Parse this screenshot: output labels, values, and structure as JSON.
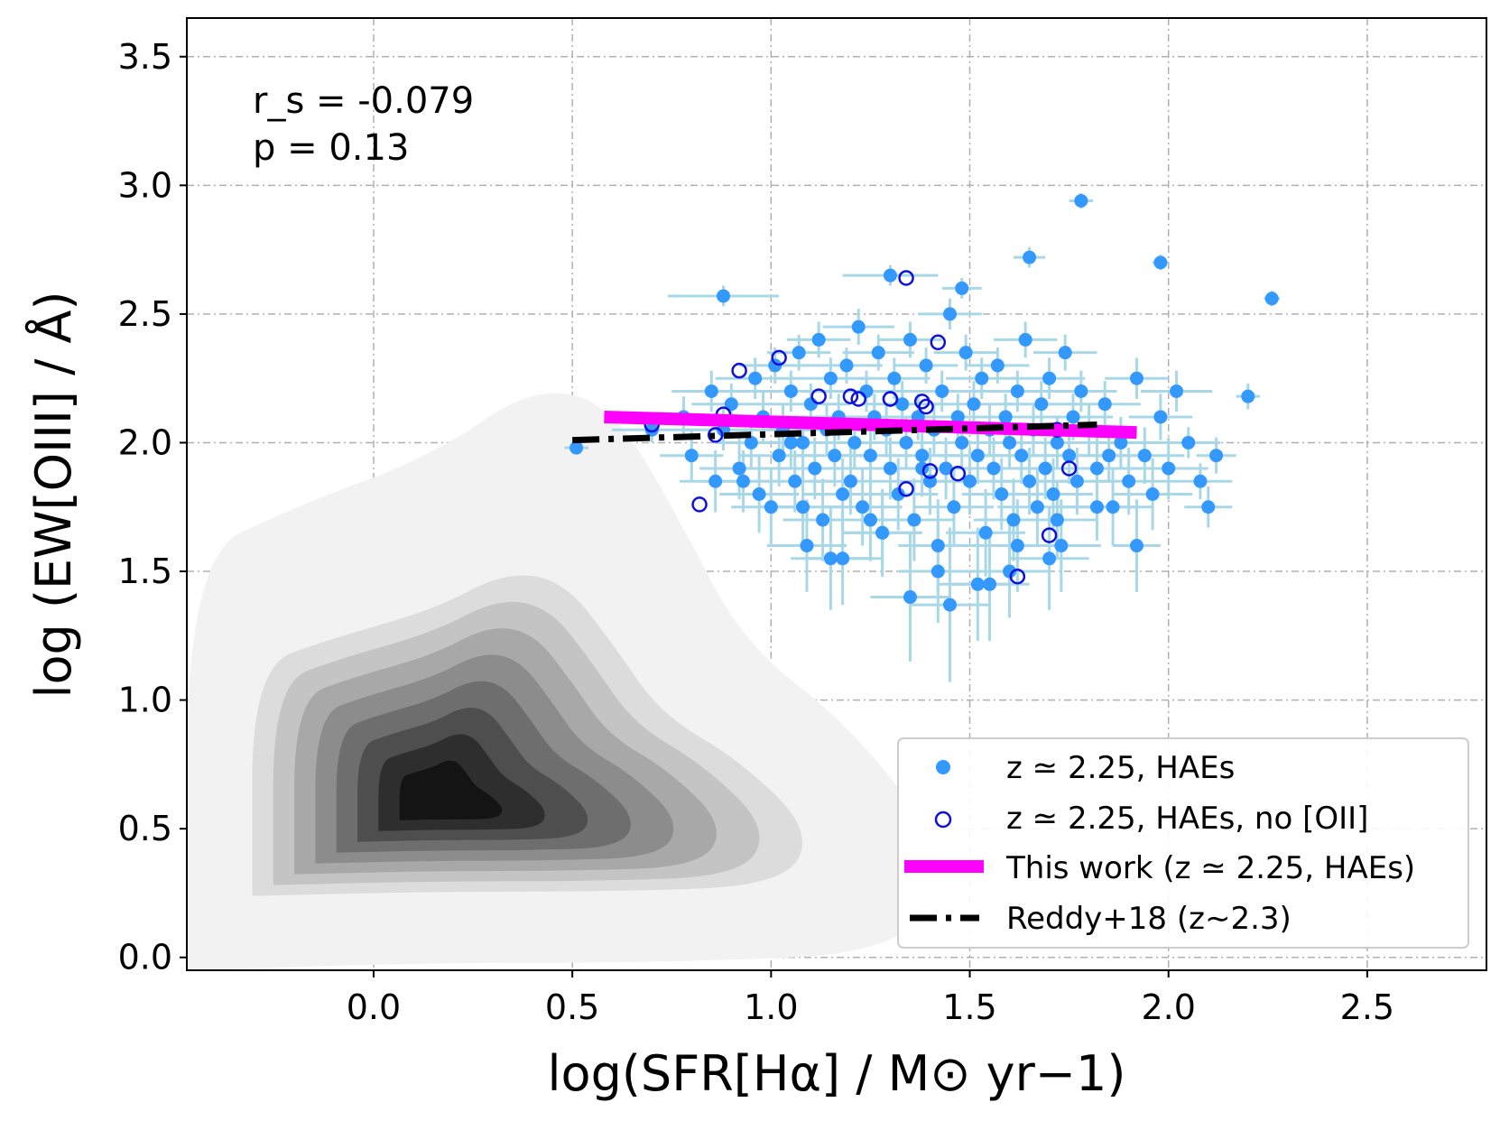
{
  "chart_data": {
    "type": "scatter",
    "xlabel": "log(SFR[Hα] / M⊙ yr−1)",
    "ylabel": "log (EW[OIII] / Å)",
    "xlim": [
      -0.47,
      2.8
    ],
    "ylim": [
      -0.05,
      3.65
    ],
    "x_ticks": [
      "0.0",
      "0.5",
      "1.0",
      "1.5",
      "2.0",
      "2.5"
    ],
    "y_ticks": [
      "0.0",
      "0.5",
      "1.0",
      "1.5",
      "2.0",
      "2.5",
      "3.0",
      "3.5"
    ],
    "grid": true,
    "legend_position": "lower-right",
    "annotations": {
      "rs": "r_s = -0.079",
      "p": "p = 0.13"
    },
    "colors": {
      "haes": "#3399ff",
      "errorbars": "#a8d8e8",
      "no_oii": "#1010dd",
      "this_work": "#ff00ff",
      "reddy": "#000000",
      "contours": [
        "#f2f2f2",
        "#dcdcdc",
        "#c4c4c4",
        "#a8a8a8",
        "#8c8c8c",
        "#6e6e6e",
        "#4e4e4e",
        "#2e2e2e",
        "#141414"
      ]
    },
    "legend": [
      {
        "label": "z ≃ 2.25, HAEs",
        "marker": "filled-circle"
      },
      {
        "label": "z ≃ 2.25, HAEs, no [OII]",
        "marker": "open-circle"
      },
      {
        "label": "This work (z ≃ 2.25, HAEs)",
        "marker": "thick-line"
      },
      {
        "label": "Reddy+18 (z∼2.3)",
        "marker": "dash-dot-line"
      }
    ],
    "series": [
      {
        "name": "z ≃ 2.25, HAEs",
        "x": [
          0.51,
          0.7,
          0.78,
          0.8,
          0.85,
          0.86,
          0.88,
          0.9,
          0.92,
          0.95,
          0.96,
          0.97,
          0.98,
          1.0,
          1.01,
          1.02,
          1.03,
          1.05,
          1.06,
          1.07,
          1.08,
          1.09,
          1.1,
          1.11,
          1.12,
          1.13,
          1.14,
          1.15,
          1.16,
          1.17,
          1.18,
          1.19,
          1.2,
          1.21,
          1.22,
          1.23,
          1.24,
          1.25,
          1.26,
          1.27,
          1.28,
          1.29,
          1.3,
          1.31,
          1.32,
          1.33,
          1.34,
          1.35,
          1.36,
          1.37,
          1.38,
          1.39,
          1.4,
          1.41,
          1.42,
          1.43,
          1.44,
          1.45,
          1.46,
          1.47,
          1.48,
          1.49,
          1.5,
          1.51,
          1.52,
          1.53,
          1.54,
          1.55,
          1.56,
          1.57,
          1.58,
          1.59,
          1.6,
          1.61,
          1.62,
          1.63,
          1.64,
          1.65,
          1.66,
          1.67,
          1.68,
          1.69,
          1.7,
          1.71,
          1.72,
          1.73,
          1.74,
          1.75,
          1.76,
          1.77,
          1.78,
          1.8,
          1.82,
          1.84,
          1.86,
          1.88,
          1.9,
          1.92,
          1.94,
          1.96,
          1.98,
          2.0,
          2.02,
          2.05,
          2.08,
          2.1,
          2.12,
          2.2,
          2.26,
          0.88,
          1.3,
          1.48,
          1.65,
          1.78,
          1.98,
          1.05,
          1.15,
          1.35,
          1.55,
          1.25,
          1.45,
          1.6,
          1.7,
          1.85,
          1.92,
          0.93,
          1.08,
          1.18,
          1.28,
          1.38,
          1.42,
          1.52,
          1.62,
          1.72,
          1.82
        ],
        "y": [
          1.98,
          2.05,
          2.1,
          1.95,
          2.2,
          1.85,
          2.05,
          2.15,
          1.9,
          2.0,
          2.25,
          1.8,
          2.1,
          1.75,
          2.3,
          1.95,
          2.05,
          2.2,
          1.85,
          2.35,
          2.0,
          1.6,
          2.15,
          1.9,
          2.4,
          1.7,
          2.05,
          2.25,
          1.95,
          2.1,
          1.55,
          2.3,
          1.85,
          2.0,
          2.45,
          1.75,
          2.2,
          1.95,
          2.1,
          2.35,
          1.65,
          2.05,
          1.9,
          2.25,
          1.8,
          2.15,
          2.0,
          2.4,
          1.7,
          2.1,
          1.95,
          2.3,
          1.85,
          2.05,
          1.6,
          2.2,
          1.9,
          2.5,
          1.75,
          2.1,
          2.0,
          2.35,
          1.85,
          2.15,
          1.95,
          2.25,
          1.65,
          2.05,
          1.9,
          2.3,
          1.8,
          2.1,
          2.0,
          1.7,
          2.2,
          1.95,
          2.4,
          1.85,
          2.05,
          1.75,
          2.15,
          1.9,
          2.25,
          1.8,
          2.0,
          1.6,
          2.35,
          1.95,
          2.1,
          1.85,
          2.2,
          2.05,
          1.9,
          2.15,
          1.75,
          2.0,
          1.85,
          2.25,
          1.95,
          1.8,
          2.1,
          1.9,
          2.2,
          2.0,
          1.85,
          1.75,
          1.95,
          2.18,
          2.56,
          2.57,
          2.65,
          2.6,
          2.72,
          2.94,
          2.7,
          2.0,
          1.55,
          1.4,
          1.45,
          1.7,
          1.37,
          1.5,
          1.55,
          1.95,
          1.6,
          1.85,
          1.75,
          1.8,
          1.65,
          1.9,
          1.5,
          1.45,
          1.6,
          1.7,
          1.75
        ],
        "xerr": [
          0.03,
          0.1,
          0.1,
          0.08,
          0.1,
          0.09,
          0.1,
          0.1,
          0.1,
          0.09,
          0.1,
          0.1,
          0.1,
          0.1,
          0.09,
          0.1,
          0.1,
          0.1,
          0.1,
          0.08,
          0.1,
          0.1,
          0.1,
          0.1,
          0.08,
          0.1,
          0.1,
          0.1,
          0.1,
          0.1,
          0.1,
          0.09,
          0.1,
          0.1,
          0.09,
          0.1,
          0.1,
          0.1,
          0.1,
          0.09,
          0.1,
          0.1,
          0.1,
          0.09,
          0.1,
          0.1,
          0.1,
          0.08,
          0.1,
          0.1,
          0.1,
          0.08,
          0.1,
          0.1,
          0.1,
          0.1,
          0.1,
          0.08,
          0.1,
          0.1,
          0.1,
          0.08,
          0.1,
          0.1,
          0.1,
          0.09,
          0.1,
          0.1,
          0.1,
          0.08,
          0.1,
          0.1,
          0.1,
          0.1,
          0.09,
          0.1,
          0.08,
          0.1,
          0.1,
          0.1,
          0.09,
          0.1,
          0.09,
          0.1,
          0.1,
          0.1,
          0.08,
          0.1,
          0.1,
          0.1,
          0.09,
          0.1,
          0.1,
          0.09,
          0.1,
          0.1,
          0.1,
          0.08,
          0.1,
          0.1,
          0.08,
          0.1,
          0.09,
          0.08,
          0.08,
          0.06,
          0.05,
          0.03,
          0.02,
          0.14,
          0.12,
          0.05,
          0.04,
          0.03,
          0.02,
          0.1,
          0.1,
          0.1,
          0.1,
          0.1,
          0.1,
          0.1,
          0.1,
          0.08,
          0.06,
          0.1,
          0.1,
          0.1,
          0.1,
          0.1,
          0.1,
          0.1,
          0.1,
          0.1,
          0.1
        ],
        "yerr": [
          0.02,
          0.05,
          0.08,
          0.1,
          0.08,
          0.12,
          0.08,
          0.08,
          0.12,
          0.1,
          0.08,
          0.15,
          0.1,
          0.15,
          0.07,
          0.12,
          0.1,
          0.08,
          0.12,
          0.07,
          0.1,
          0.18,
          0.08,
          0.12,
          0.07,
          0.16,
          0.1,
          0.08,
          0.12,
          0.09,
          0.18,
          0.07,
          0.13,
          0.1,
          0.07,
          0.15,
          0.08,
          0.12,
          0.09,
          0.07,
          0.17,
          0.1,
          0.12,
          0.08,
          0.14,
          0.09,
          0.1,
          0.07,
          0.16,
          0.09,
          0.11,
          0.07,
          0.13,
          0.1,
          0.18,
          0.08,
          0.12,
          0.06,
          0.15,
          0.09,
          0.1,
          0.07,
          0.13,
          0.09,
          0.11,
          0.08,
          0.17,
          0.1,
          0.12,
          0.07,
          0.14,
          0.09,
          0.1,
          0.16,
          0.08,
          0.11,
          0.07,
          0.13,
          0.1,
          0.15,
          0.09,
          0.12,
          0.08,
          0.14,
          0.1,
          0.18,
          0.07,
          0.11,
          0.09,
          0.13,
          0.08,
          0.1,
          0.12,
          0.09,
          0.15,
          0.1,
          0.13,
          0.08,
          0.11,
          0.14,
          0.09,
          0.12,
          0.08,
          0.06,
          0.07,
          0.08,
          0.07,
          0.05,
          0.03,
          0.04,
          0.04,
          0.04,
          0.04,
          0.03,
          0.03,
          0.1,
          0.2,
          0.25,
          0.22,
          0.16,
          0.3,
          0.18,
          0.2,
          0.1,
          0.18,
          0.12,
          0.15,
          0.14,
          0.17,
          0.11,
          0.2,
          0.22,
          0.18,
          0.15,
          0.13
        ]
      },
      {
        "name": "z ≃ 2.25, HAEs, no [OII]",
        "x": [
          0.7,
          0.82,
          0.86,
          0.88,
          0.92,
          1.02,
          1.12,
          1.22,
          1.3,
          1.34,
          1.38,
          1.4,
          1.42,
          1.47,
          1.62,
          1.7,
          1.75,
          1.72,
          1.3,
          1.2,
          1.39,
          1.34
        ],
        "y": [
          2.07,
          1.76,
          2.03,
          2.11,
          2.28,
          2.33,
          2.18,
          2.17,
          2.17,
          2.64,
          2.16,
          1.89,
          2.39,
          1.88,
          1.48,
          1.64,
          1.9,
          2.05,
          2.17,
          2.18,
          2.14,
          1.82
        ]
      },
      {
        "name": "This work (z ≃ 2.25, HAEs)",
        "x": [
          0.58,
          1.92
        ],
        "y": [
          2.1,
          2.04
        ]
      },
      {
        "name": "Reddy+18 (z∼2.3)",
        "x": [
          0.5,
          1.82
        ],
        "y": [
          2.01,
          2.07
        ]
      }
    ],
    "contours": {
      "name": "background density",
      "center": [
        0.15,
        0.6
      ],
      "levels": 9,
      "note_free": true
    }
  }
}
